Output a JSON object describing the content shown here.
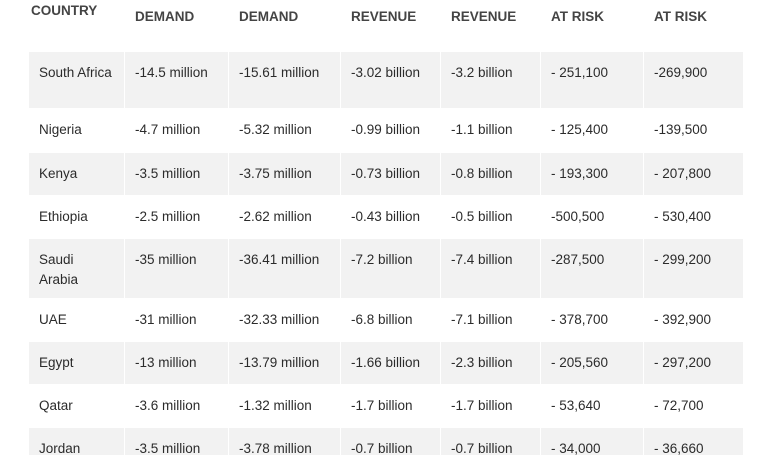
{
  "table": {
    "header": [
      "COUNTRY",
      "DEMAND",
      "DEMAND",
      "REVENUE",
      "REVENUE",
      "AT RISK",
      "AT RISK"
    ],
    "rows": [
      [
        "South Africa",
        "-14.5 million",
        "-15.61 million",
        "-3.02 billion",
        "-3.2 billion",
        "- 251,100",
        "-269,900"
      ],
      [
        "Nigeria",
        "-4.7 million",
        "-5.32 million",
        "-0.99 billion",
        "-1.1 billion",
        "- 125,400",
        "-139,500"
      ],
      [
        "Kenya",
        "-3.5 million",
        "-3.75 million",
        "-0.73 billion",
        "-0.8 billion",
        "- 193,300",
        "- 207,800"
      ],
      [
        "Ethiopia",
        "-2.5 million",
        "-2.62 million",
        "-0.43 billion",
        "-0.5 billion",
        "-500,500",
        "- 530,400"
      ],
      [
        "Saudi Arabia",
        "-35 million",
        "-36.41 million",
        "-7.2 billion",
        "-7.4 billion",
        "-287,500",
        "- 299,200"
      ],
      [
        "UAE",
        "-31 million",
        "-32.33 million",
        "-6.8 billion",
        "-7.1 billion",
        "- 378,700",
        "- 392,900"
      ],
      [
        "Egypt",
        "-13 million",
        "-13.79 million",
        "-1.66 billion",
        "-2.3 billion",
        "- 205,560",
        "- 297,200"
      ],
      [
        "Qatar",
        "-3.6 million",
        "-1.32 million",
        "-1.7 billion",
        "-1.7 billion",
        "- 53,640",
        "- 72,700"
      ],
      [
        "Jordan",
        "-3.5 million",
        "-3.78 million",
        "-0.7 billion",
        "-0.7 billion",
        "- 34,000",
        "- 36,660"
      ]
    ]
  }
}
